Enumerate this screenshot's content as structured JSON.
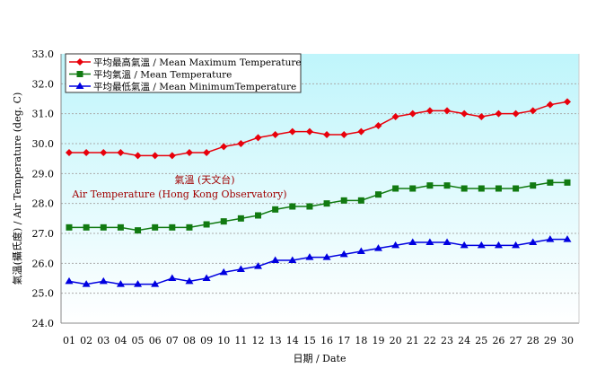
{
  "chart_data": {
    "type": "line",
    "xlabel": "日期 / Date",
    "ylabel": "氣溫(攝氏度) / Air Temperature (deg. C)",
    "annotation": [
      "氣溫 (天文台)",
      "Air Temperature (Hong Kong Observatory)"
    ],
    "ylim": [
      24.0,
      33.0
    ],
    "yticks": [
      "24.0",
      "25.0",
      "26.0",
      "27.0",
      "28.0",
      "29.0",
      "30.0",
      "31.0",
      "32.0",
      "33.0"
    ],
    "categories": [
      "01",
      "02",
      "03",
      "04",
      "05",
      "06",
      "07",
      "08",
      "09",
      "10",
      "11",
      "12",
      "13",
      "14",
      "15",
      "16",
      "17",
      "18",
      "19",
      "20",
      "21",
      "22",
      "23",
      "24",
      "25",
      "26",
      "27",
      "28",
      "29",
      "30"
    ],
    "grid": true,
    "legend_placement": "top-left",
    "background": [
      "#bff5fb",
      "#ffffff"
    ],
    "series": [
      {
        "name": "平均最高氣溫 / Mean Maximum Temperature",
        "color": "#e8000b",
        "marker": "diamond",
        "values": [
          29.7,
          29.7,
          29.7,
          29.7,
          29.6,
          29.6,
          29.6,
          29.7,
          29.7,
          29.9,
          30.0,
          30.2,
          30.3,
          30.4,
          30.4,
          30.3,
          30.3,
          30.4,
          30.6,
          30.9,
          31.0,
          31.1,
          31.1,
          31.0,
          30.9,
          31.0,
          31.0,
          31.1,
          31.3,
          31.4
        ]
      },
      {
        "name": "平均氣溫 / Mean Temperature",
        "color": "#117a11",
        "marker": "square",
        "values": [
          27.2,
          27.2,
          27.2,
          27.2,
          27.1,
          27.2,
          27.2,
          27.2,
          27.3,
          27.4,
          27.5,
          27.6,
          27.8,
          27.9,
          27.9,
          28.0,
          28.1,
          28.1,
          28.3,
          28.5,
          28.5,
          28.6,
          28.6,
          28.5,
          28.5,
          28.5,
          28.5,
          28.6,
          28.7,
          28.7
        ]
      },
      {
        "name": "平均最低氣溫 / Mean MinimumTemperature",
        "color": "#0000e0",
        "marker": "triangle",
        "values": [
          25.4,
          25.3,
          25.4,
          25.3,
          25.3,
          25.3,
          25.5,
          25.4,
          25.5,
          25.7,
          25.8,
          25.9,
          26.1,
          26.1,
          26.2,
          26.2,
          26.3,
          26.4,
          26.5,
          26.6,
          26.7,
          26.7,
          26.7,
          26.6,
          26.6,
          26.6,
          26.6,
          26.7,
          26.8,
          26.8
        ]
      }
    ]
  }
}
